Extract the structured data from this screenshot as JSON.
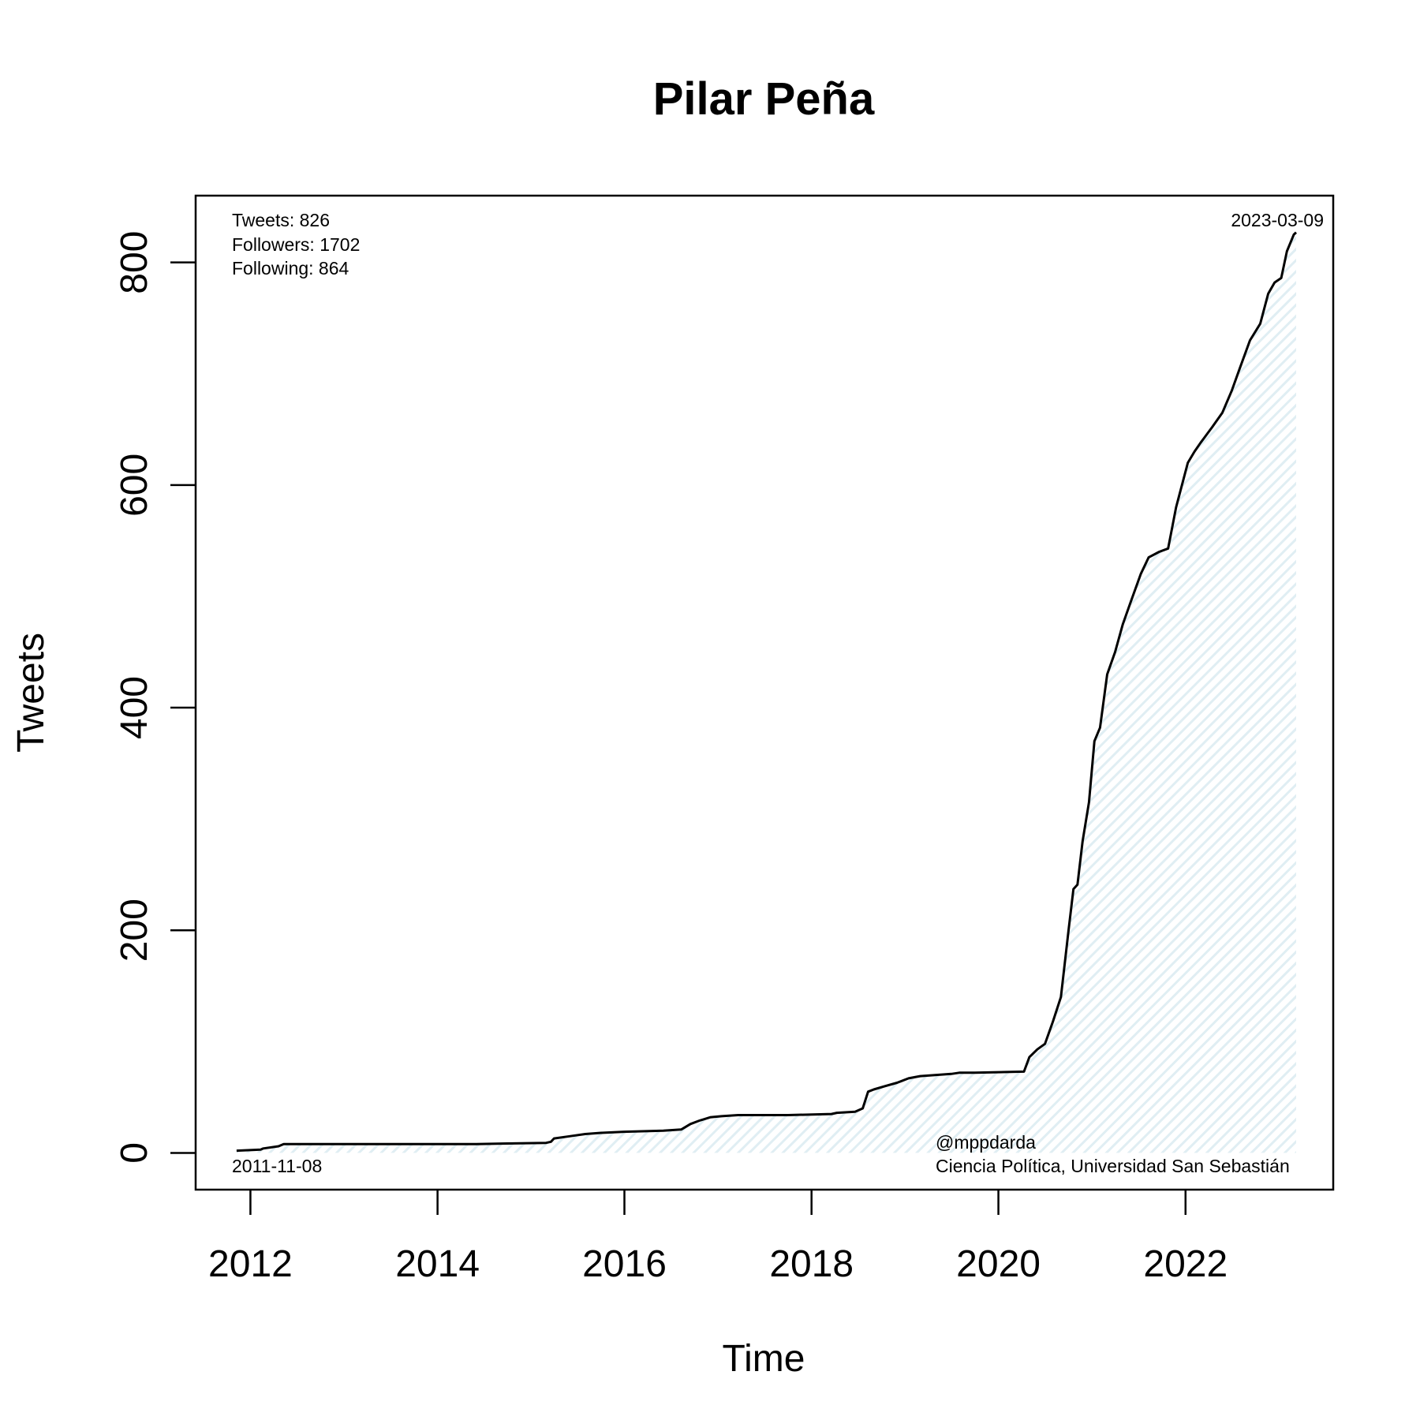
{
  "chart_data": {
    "type": "line",
    "title": "Pilar Peña",
    "xlabel": "Time",
    "ylabel": "Tweets",
    "xlim": [
      "2011-06-01",
      "2023-08-01"
    ],
    "ylim": [
      -33,
      860
    ],
    "x_ticks": [
      "2012",
      "2014",
      "2016",
      "2018",
      "2020",
      "2022"
    ],
    "y_ticks": [
      "0",
      "200",
      "400",
      "600",
      "800"
    ],
    "grid": false,
    "legend": "none",
    "fill_color": "#e0eef3",
    "line_color": "#000000",
    "series": [
      {
        "x": [
          "2011-11-08",
          "2012-02-10",
          "2012-02-20",
          "2012-04-20",
          "2012-05-10",
          "2013-06-01",
          "2014-06-01",
          "2015-03-01",
          "2015-03-20",
          "2015-04-01",
          "2015-06-01",
          "2015-08-01",
          "2015-10-01",
          "2016-01-01",
          "2016-06-01",
          "2016-08-10",
          "2016-09-15",
          "2016-10-20",
          "2016-12-01",
          "2017-01-15",
          "2017-03-20",
          "2017-10-01",
          "2018-03-20",
          "2018-04-10",
          "2018-06-20",
          "2018-07-20",
          "2018-08-10",
          "2018-09-01",
          "2018-10-15",
          "2018-12-01",
          "2019-01-15",
          "2019-03-01",
          "2019-07-01",
          "2019-08-01",
          "2019-10-01",
          "2020-04-10",
          "2020-05-01",
          "2020-06-01",
          "2020-07-01",
          "2020-08-01",
          "2020-09-01",
          "2020-10-01",
          "2020-10-20",
          "2020-11-05",
          "2020-11-25",
          "2020-12-20",
          "2021-01-10",
          "2021-02-01",
          "2021-03-01",
          "2021-04-01",
          "2021-05-01",
          "2021-06-01",
          "2021-07-10",
          "2021-08-10",
          "2021-09-20",
          "2021-10-25",
          "2021-11-25",
          "2022-01-10",
          "2022-02-05",
          "2022-03-01",
          "2022-04-15",
          "2022-05-25",
          "2022-07-01",
          "2022-08-01",
          "2022-09-10",
          "2022-10-20",
          "2022-11-20",
          "2022-12-15",
          "2023-01-10",
          "2023-02-01",
          "2023-02-28",
          "2023-03-09"
        ],
        "y": [
          2,
          3,
          4,
          6,
          8,
          8,
          8,
          9,
          10,
          13,
          15,
          17,
          18,
          19,
          20,
          21,
          26,
          29,
          32,
          33,
          34,
          34,
          35,
          36,
          37,
          40,
          55,
          57,
          60,
          63,
          67,
          69,
          71,
          72,
          72,
          73,
          86,
          93,
          98,
          118,
          140,
          200,
          237,
          241,
          280,
          315,
          370,
          382,
          430,
          450,
          475,
          495,
          520,
          535,
          540,
          543,
          580,
          620,
          630,
          638,
          652,
          665,
          685,
          705,
          730,
          745,
          772,
          782,
          786,
          810,
          825,
          827
        ]
      }
    ],
    "annotations": {
      "stats": [
        "Tweets: 826",
        "Followers: 1702",
        "Following: 864"
      ],
      "start_date": "2011-11-08",
      "end_date": "2023-03-09",
      "credit": [
        "@mppdarda",
        "Ciencia Política, Universidad San Sebastián"
      ]
    }
  }
}
